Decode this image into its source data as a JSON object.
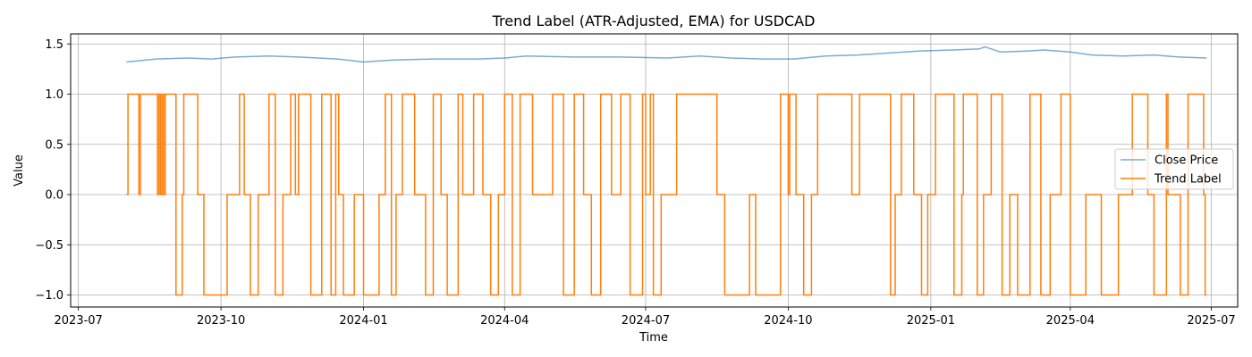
{
  "chart_data": {
    "type": "line",
    "title": "Trend Label (ATR-Adjusted, EMA) for USDCAD",
    "xlabel": "Time",
    "ylabel": "Value",
    "x_range": [
      "2023-06-26",
      "2025-07-18"
    ],
    "ylim": [
      -1.12,
      1.6
    ],
    "grid": true,
    "legend_position": "center-right",
    "x_ticks": [
      "2023-07",
      "2023-10",
      "2024-01",
      "2024-04",
      "2024-07",
      "2024-10",
      "2025-01",
      "2025-04",
      "2025-07"
    ],
    "y_ticks": [
      1.5,
      1.0,
      0.5,
      0.0,
      -0.5,
      -1.0
    ],
    "y_tick_labels": [
      "1.5",
      "1.0",
      "0.5",
      "0.0",
      "−0.5",
      "−1.0"
    ],
    "series": [
      {
        "name": "Close Price",
        "color": "#1f77b4",
        "opacity": 0.6,
        "style": "line",
        "points": [
          [
            "2023-08-01",
            1.32
          ],
          [
            "2023-08-20",
            1.35
          ],
          [
            "2023-09-10",
            1.36
          ],
          [
            "2023-09-25",
            1.35
          ],
          [
            "2023-10-10",
            1.37
          ],
          [
            "2023-11-01",
            1.38
          ],
          [
            "2023-11-20",
            1.37
          ],
          [
            "2023-12-15",
            1.35
          ],
          [
            "2024-01-01",
            1.32
          ],
          [
            "2024-01-20",
            1.34
          ],
          [
            "2024-02-15",
            1.35
          ],
          [
            "2024-03-15",
            1.35
          ],
          [
            "2024-04-01",
            1.36
          ],
          [
            "2024-04-15",
            1.38
          ],
          [
            "2024-05-15",
            1.37
          ],
          [
            "2024-06-15",
            1.37
          ],
          [
            "2024-07-15",
            1.36
          ],
          [
            "2024-08-05",
            1.38
          ],
          [
            "2024-08-25",
            1.36
          ],
          [
            "2024-09-15",
            1.35
          ],
          [
            "2024-10-05",
            1.35
          ],
          [
            "2024-10-25",
            1.38
          ],
          [
            "2024-11-15",
            1.39
          ],
          [
            "2024-12-05",
            1.41
          ],
          [
            "2024-12-25",
            1.43
          ],
          [
            "2025-01-15",
            1.44
          ],
          [
            "2025-02-01",
            1.45
          ],
          [
            "2025-02-05",
            1.47
          ],
          [
            "2025-02-15",
            1.42
          ],
          [
            "2025-03-05",
            1.43
          ],
          [
            "2025-03-15",
            1.44
          ],
          [
            "2025-04-01",
            1.42
          ],
          [
            "2025-04-15",
            1.39
          ],
          [
            "2025-05-05",
            1.38
          ],
          [
            "2025-05-25",
            1.39
          ],
          [
            "2025-06-10",
            1.37
          ],
          [
            "2025-06-28",
            1.36
          ]
        ]
      },
      {
        "name": "Trend Label",
        "color": "#ff7f0e",
        "opacity": 1,
        "style": "step",
        "points": [
          [
            "2023-08-01",
            0
          ],
          [
            "2023-08-02",
            1
          ],
          [
            "2023-08-08",
            1
          ],
          [
            "2023-08-09",
            0
          ],
          [
            "2023-08-10",
            1
          ],
          [
            "2023-08-20",
            1
          ],
          [
            "2023-08-21",
            0
          ],
          [
            "2023-08-22",
            1
          ],
          [
            "2023-08-23",
            0
          ],
          [
            "2023-08-24",
            1
          ],
          [
            "2023-08-25",
            0
          ],
          [
            "2023-08-26",
            1
          ],
          [
            "2023-09-01",
            1
          ],
          [
            "2023-09-02",
            -1
          ],
          [
            "2023-09-05",
            -1
          ],
          [
            "2023-09-06",
            0
          ],
          [
            "2023-09-07",
            1
          ],
          [
            "2023-09-15",
            1
          ],
          [
            "2023-09-16",
            0
          ],
          [
            "2023-09-19",
            0
          ],
          [
            "2023-09-20",
            -1
          ],
          [
            "2023-10-04",
            -1
          ],
          [
            "2023-10-05",
            0
          ],
          [
            "2023-10-12",
            0
          ],
          [
            "2023-10-13",
            1
          ],
          [
            "2023-10-15",
            1
          ],
          [
            "2023-10-16",
            0
          ],
          [
            "2023-10-19",
            0
          ],
          [
            "2023-10-20",
            -1
          ],
          [
            "2023-10-24",
            -1
          ],
          [
            "2023-10-25",
            0
          ],
          [
            "2023-10-31",
            0
          ],
          [
            "2023-11-01",
            1
          ],
          [
            "2023-11-04",
            1
          ],
          [
            "2023-11-05",
            -1
          ],
          [
            "2023-11-09",
            -1
          ],
          [
            "2023-11-10",
            0
          ],
          [
            "2023-11-14",
            0
          ],
          [
            "2023-11-15",
            1
          ],
          [
            "2023-11-17",
            1
          ],
          [
            "2023-11-18",
            0
          ],
          [
            "2023-11-20",
            1
          ],
          [
            "2023-11-27",
            1
          ],
          [
            "2023-11-28",
            -1
          ],
          [
            "2023-12-04",
            -1
          ],
          [
            "2023-12-05",
            1
          ],
          [
            "2023-12-10",
            1
          ],
          [
            "2023-12-11",
            -1
          ],
          [
            "2023-12-13",
            -1
          ],
          [
            "2023-12-14",
            1
          ],
          [
            "2023-12-15",
            1
          ],
          [
            "2023-12-16",
            0
          ],
          [
            "2023-12-18",
            0
          ],
          [
            "2023-12-19",
            -1
          ],
          [
            "2023-12-25",
            -1
          ],
          [
            "2023-12-26",
            0
          ],
          [
            "2023-12-31",
            0
          ],
          [
            "2024-01-01",
            -1
          ],
          [
            "2024-01-10",
            -1
          ],
          [
            "2024-01-11",
            0
          ],
          [
            "2024-01-14",
            0
          ],
          [
            "2024-01-15",
            1
          ],
          [
            "2024-01-18",
            1
          ],
          [
            "2024-01-19",
            -1
          ],
          [
            "2024-01-21",
            -1
          ],
          [
            "2024-01-22",
            0
          ],
          [
            "2024-01-25",
            0
          ],
          [
            "2024-01-26",
            1
          ],
          [
            "2024-02-02",
            1
          ],
          [
            "2024-02-03",
            0
          ],
          [
            "2024-02-09",
            0
          ],
          [
            "2024-02-10",
            -1
          ],
          [
            "2024-02-14",
            -1
          ],
          [
            "2024-02-15",
            1
          ],
          [
            "2024-02-19",
            1
          ],
          [
            "2024-02-20",
            0
          ],
          [
            "2024-02-23",
            0
          ],
          [
            "2024-02-24",
            -1
          ],
          [
            "2024-03-01",
            -1
          ],
          [
            "2024-03-02",
            1
          ],
          [
            "2024-03-04",
            1
          ],
          [
            "2024-03-05",
            0
          ],
          [
            "2024-03-11",
            0
          ],
          [
            "2024-03-12",
            1
          ],
          [
            "2024-03-17",
            1
          ],
          [
            "2024-03-18",
            0
          ],
          [
            "2024-03-22",
            0
          ],
          [
            "2024-03-23",
            -1
          ],
          [
            "2024-03-27",
            -1
          ],
          [
            "2024-03-28",
            0
          ],
          [
            "2024-03-31",
            0
          ],
          [
            "2024-04-01",
            1
          ],
          [
            "2024-04-05",
            1
          ],
          [
            "2024-04-06",
            -1
          ],
          [
            "2024-04-10",
            -1
          ],
          [
            "2024-04-11",
            1
          ],
          [
            "2024-04-18",
            1
          ],
          [
            "2024-04-19",
            0
          ],
          [
            "2024-05-01",
            0
          ],
          [
            "2024-05-02",
            1
          ],
          [
            "2024-05-08",
            1
          ],
          [
            "2024-05-09",
            -1
          ],
          [
            "2024-05-15",
            -1
          ],
          [
            "2024-05-16",
            1
          ],
          [
            "2024-05-21",
            1
          ],
          [
            "2024-05-22",
            0
          ],
          [
            "2024-05-26",
            0
          ],
          [
            "2024-05-27",
            -1
          ],
          [
            "2024-06-01",
            -1
          ],
          [
            "2024-06-02",
            1
          ],
          [
            "2024-06-08",
            1
          ],
          [
            "2024-06-09",
            0
          ],
          [
            "2024-06-14",
            0
          ],
          [
            "2024-06-15",
            1
          ],
          [
            "2024-06-20",
            1
          ],
          [
            "2024-06-21",
            -1
          ],
          [
            "2024-06-28",
            -1
          ],
          [
            "2024-06-29",
            1
          ],
          [
            "2024-06-30",
            1
          ],
          [
            "2024-07-01",
            0
          ],
          [
            "2024-07-03",
            0
          ],
          [
            "2024-07-04",
            1
          ],
          [
            "2024-07-05",
            1
          ],
          [
            "2024-07-06",
            -1
          ],
          [
            "2024-07-10",
            -1
          ],
          [
            "2024-07-11",
            0
          ],
          [
            "2024-07-20",
            0
          ],
          [
            "2024-07-21",
            1
          ],
          [
            "2024-08-15",
            1
          ],
          [
            "2024-08-16",
            0
          ],
          [
            "2024-08-20",
            0
          ],
          [
            "2024-08-21",
            -1
          ],
          [
            "2024-09-05",
            -1
          ],
          [
            "2024-09-06",
            0
          ],
          [
            "2024-09-09",
            0
          ],
          [
            "2024-09-10",
            -1
          ],
          [
            "2024-09-25",
            -1
          ],
          [
            "2024-09-26",
            1
          ],
          [
            "2024-09-30",
            1
          ],
          [
            "2024-10-01",
            0
          ],
          [
            "2024-10-02",
            1
          ],
          [
            "2024-10-05",
            1
          ],
          [
            "2024-10-06",
            0
          ],
          [
            "2024-10-10",
            0
          ],
          [
            "2024-10-11",
            -1
          ],
          [
            "2024-10-15",
            -1
          ],
          [
            "2024-10-16",
            0
          ],
          [
            "2024-10-20",
            1
          ],
          [
            "2024-11-10",
            1
          ],
          [
            "2024-11-11",
            0
          ],
          [
            "2024-11-15",
            0
          ],
          [
            "2024-11-16",
            1
          ],
          [
            "2024-12-05",
            1
          ],
          [
            "2024-12-06",
            -1
          ],
          [
            "2024-12-08",
            -1
          ],
          [
            "2024-12-09",
            0
          ],
          [
            "2024-12-12",
            0
          ],
          [
            "2024-12-13",
            1
          ],
          [
            "2024-12-20",
            1
          ],
          [
            "2024-12-21",
            0
          ],
          [
            "2024-12-25",
            0
          ],
          [
            "2024-12-26",
            -1
          ],
          [
            "2024-12-29",
            -1
          ],
          [
            "2024-12-30",
            0
          ],
          [
            "2025-01-03",
            0
          ],
          [
            "2025-01-04",
            1
          ],
          [
            "2025-01-15",
            1
          ],
          [
            "2025-01-16",
            -1
          ],
          [
            "2025-01-20",
            -1
          ],
          [
            "2025-01-21",
            0
          ],
          [
            "2025-01-22",
            1
          ],
          [
            "2025-01-30",
            1
          ],
          [
            "2025-01-31",
            -1
          ],
          [
            "2025-02-03",
            -1
          ],
          [
            "2025-02-04",
            0
          ],
          [
            "2025-02-08",
            0
          ],
          [
            "2025-02-09",
            1
          ],
          [
            "2025-02-15",
            1
          ],
          [
            "2025-02-16",
            -1
          ],
          [
            "2025-02-20",
            -1
          ],
          [
            "2025-02-21",
            0
          ],
          [
            "2025-02-25",
            0
          ],
          [
            "2025-02-26",
            -1
          ],
          [
            "2025-03-05",
            -1
          ],
          [
            "2025-03-06",
            1
          ],
          [
            "2025-03-12",
            1
          ],
          [
            "2025-03-13",
            -1
          ],
          [
            "2025-03-18",
            -1
          ],
          [
            "2025-03-19",
            0
          ],
          [
            "2025-03-25",
            0
          ],
          [
            "2025-03-26",
            1
          ],
          [
            "2025-03-31",
            1
          ],
          [
            "2025-04-01",
            -1
          ],
          [
            "2025-04-10",
            -1
          ],
          [
            "2025-04-11",
            0
          ],
          [
            "2025-04-20",
            0
          ],
          [
            "2025-04-21",
            -1
          ],
          [
            "2025-05-01",
            -1
          ],
          [
            "2025-05-02",
            0
          ],
          [
            "2025-05-10",
            0
          ],
          [
            "2025-05-11",
            1
          ],
          [
            "2025-05-20",
            1
          ],
          [
            "2025-05-21",
            0
          ],
          [
            "2025-05-24",
            0
          ],
          [
            "2025-05-25",
            -1
          ],
          [
            "2025-06-01",
            -1
          ],
          [
            "2025-06-02",
            1
          ],
          [
            "2025-06-03",
            0
          ],
          [
            "2025-06-10",
            0
          ],
          [
            "2025-06-11",
            -1
          ],
          [
            "2025-06-15",
            -1
          ],
          [
            "2025-06-16",
            1
          ],
          [
            "2025-06-25",
            1
          ],
          [
            "2025-06-26",
            0
          ],
          [
            "2025-06-27",
            -1
          ],
          [
            "2025-06-28",
            -1
          ]
        ]
      }
    ]
  }
}
